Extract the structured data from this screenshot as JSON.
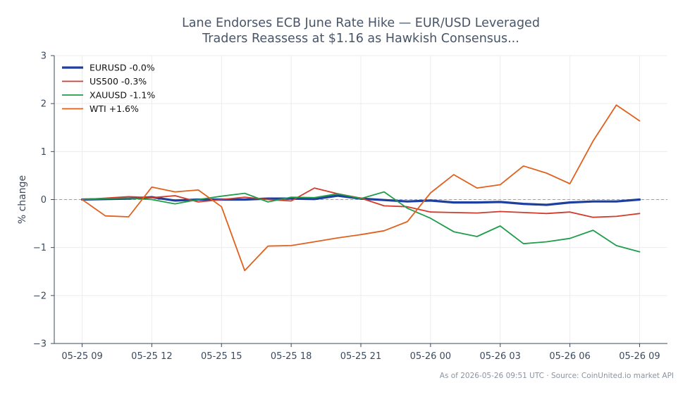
{
  "chart_data": {
    "type": "line",
    "title_lines": [
      "Lane Endorses ECB June Rate Hike — EUR/USD Leveraged",
      "Traders Reassess at $1.16 as Hawkish Consensus..."
    ],
    "ylabel": "% change",
    "xlabel": "",
    "ylim": [
      -3,
      3
    ],
    "yticks": [
      "3",
      "2",
      "1",
      "0",
      "−1",
      "−2",
      "−3"
    ],
    "ytick_values": [
      3,
      2,
      1,
      0,
      -1,
      -2,
      -3
    ],
    "xticks": [
      "05-25 09",
      "05-25 12",
      "05-25 15",
      "05-25 18",
      "05-25 21",
      "05-26 00",
      "05-26 03",
      "05-26 06",
      "05-26 09"
    ],
    "xtick_hours": [
      0,
      3,
      6,
      9,
      12,
      15,
      18,
      21,
      24
    ],
    "xlim_hours": [
      -1.2,
      25.2
    ],
    "x_hours": [
      0,
      1,
      2,
      3,
      4,
      5,
      6,
      7,
      8,
      9,
      10,
      11,
      12,
      13,
      14,
      15,
      16,
      17,
      18,
      19,
      20,
      21,
      22,
      23,
      24
    ],
    "grid": true,
    "zero_line": true,
    "legend_position": "top-left",
    "series": [
      {
        "name": "EURUSD -0.0%",
        "color": "#1f3fa0",
        "width": 3.2,
        "values": [
          0.0,
          0.01,
          0.02,
          0.05,
          -0.02,
          0.0,
          0.0,
          0.0,
          0.02,
          0.02,
          0.01,
          0.08,
          0.02,
          -0.01,
          -0.04,
          -0.02,
          -0.06,
          -0.06,
          -0.05,
          -0.09,
          -0.11,
          -0.06,
          -0.04,
          -0.04,
          0.0
        ]
      },
      {
        "name": "US500 -0.3%",
        "color": "#d23a2a",
        "width": 1.8,
        "values": [
          0.0,
          0.03,
          0.06,
          0.04,
          0.08,
          -0.05,
          0.0,
          0.05,
          0.0,
          -0.03,
          0.24,
          0.12,
          0.03,
          -0.13,
          -0.15,
          -0.26,
          -0.27,
          -0.28,
          -0.25,
          -0.27,
          -0.29,
          -0.26,
          -0.37,
          -0.35,
          -0.29
        ]
      },
      {
        "name": "XAUUSD -1.1%",
        "color": "#1f9d4a",
        "width": 1.8,
        "values": [
          0.0,
          0.02,
          0.03,
          0.0,
          -0.09,
          0.0,
          0.07,
          0.13,
          -0.05,
          0.05,
          0.04,
          0.12,
          0.02,
          0.16,
          -0.18,
          -0.39,
          -0.67,
          -0.77,
          -0.55,
          -0.92,
          -0.88,
          -0.81,
          -0.64,
          -0.96,
          -1.09
        ]
      },
      {
        "name": "WTI +1.6%",
        "color": "#e0611d",
        "width": 1.8,
        "values": [
          0.0,
          -0.34,
          -0.36,
          0.26,
          0.16,
          0.2,
          -0.15,
          -1.48,
          -0.97,
          -0.96,
          -0.88,
          -0.8,
          -0.73,
          -0.65,
          -0.46,
          0.14,
          0.52,
          0.24,
          0.31,
          0.7,
          0.55,
          0.33,
          1.22,
          1.97,
          1.64
        ]
      }
    ]
  },
  "footer": {
    "note": "As of 2026-05-26 09:51 UTC · Source: CoinUnited.io market API"
  }
}
